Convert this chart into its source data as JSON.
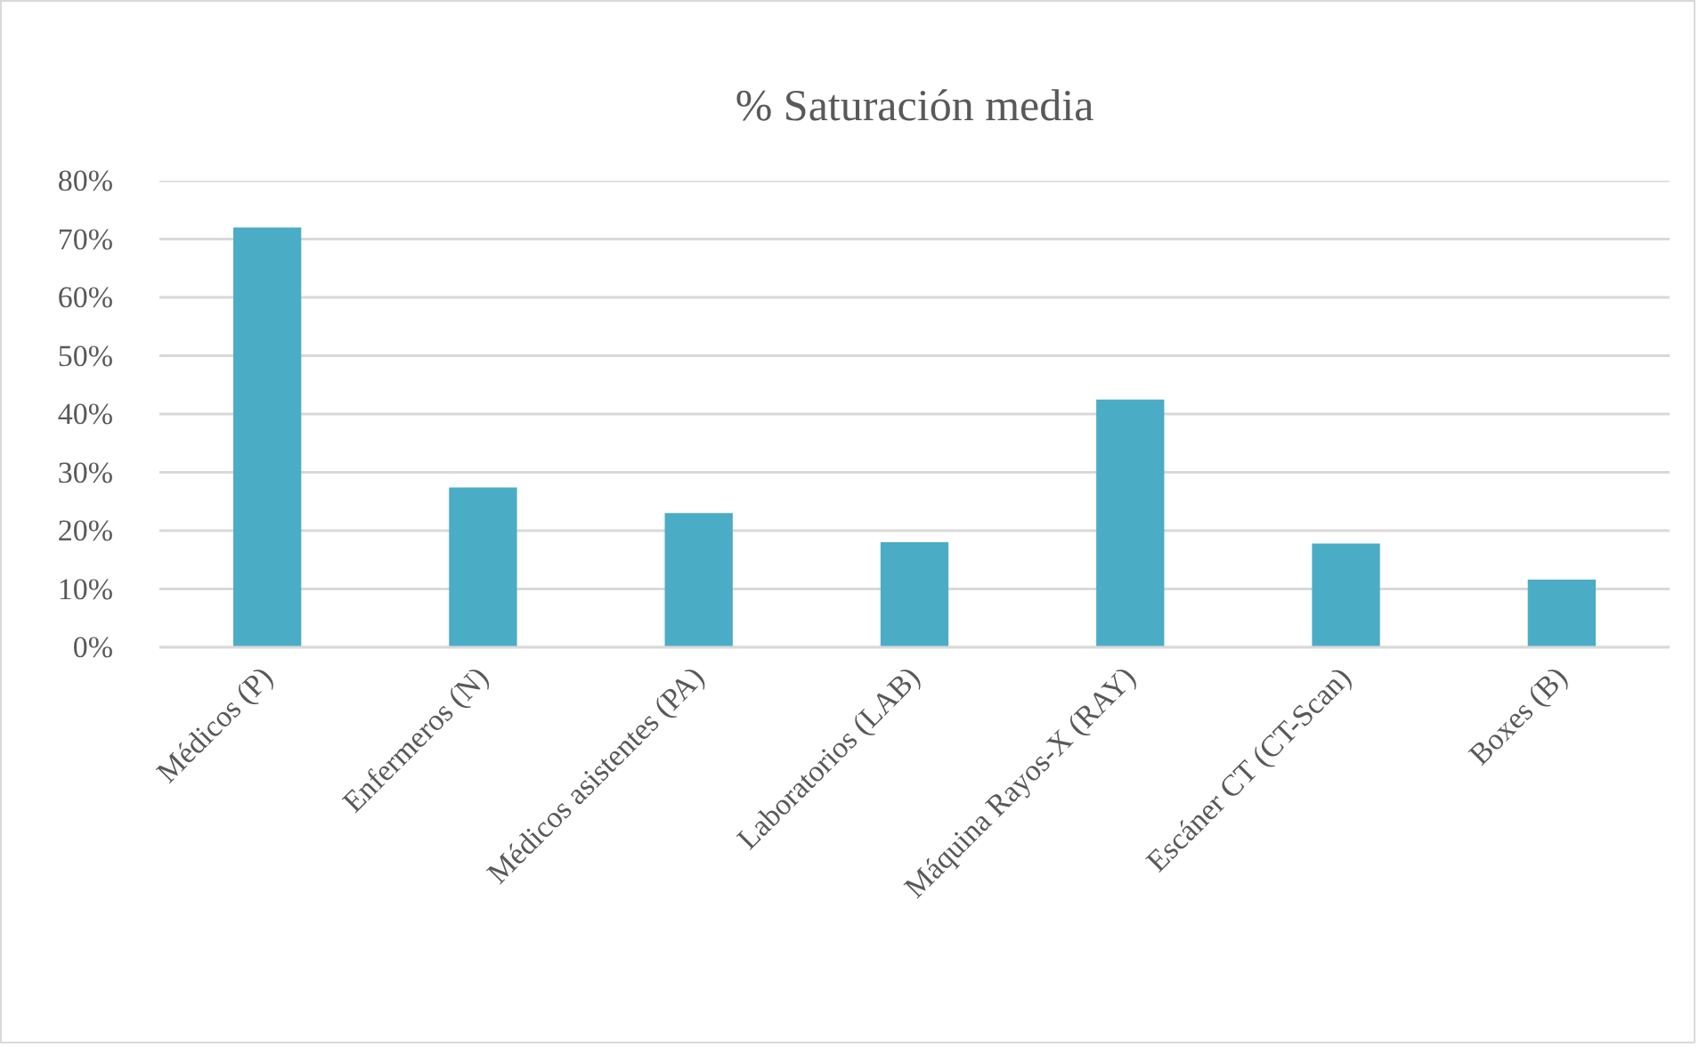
{
  "chart_data": {
    "type": "bar",
    "title": "% Saturación media",
    "categories": [
      "Médicos (P)",
      "Enfermeros (N)",
      "Médicos asistentes (PA)",
      "Laboratorios (LAB)",
      "Máquina Rayos-X (RAY)",
      "Escáner CT (CT-Scan)",
      "Boxes (B)"
    ],
    "values": [
      72,
      27.4,
      23,
      18,
      42.5,
      17.8,
      11.6
    ],
    "color": "#4bacc6",
    "ylim": [
      0,
      80
    ],
    "yticks": [
      {
        "value": 0,
        "label": "0%"
      },
      {
        "value": 10,
        "label": "10%"
      },
      {
        "value": 20,
        "label": "20%"
      },
      {
        "value": 30,
        "label": "30%"
      },
      {
        "value": 40,
        "label": "40%"
      },
      {
        "value": 50,
        "label": "50%"
      },
      {
        "value": 60,
        "label": "60%"
      },
      {
        "value": 70,
        "label": "70%"
      },
      {
        "value": 80,
        "label": "80%"
      }
    ],
    "grid": "y"
  }
}
